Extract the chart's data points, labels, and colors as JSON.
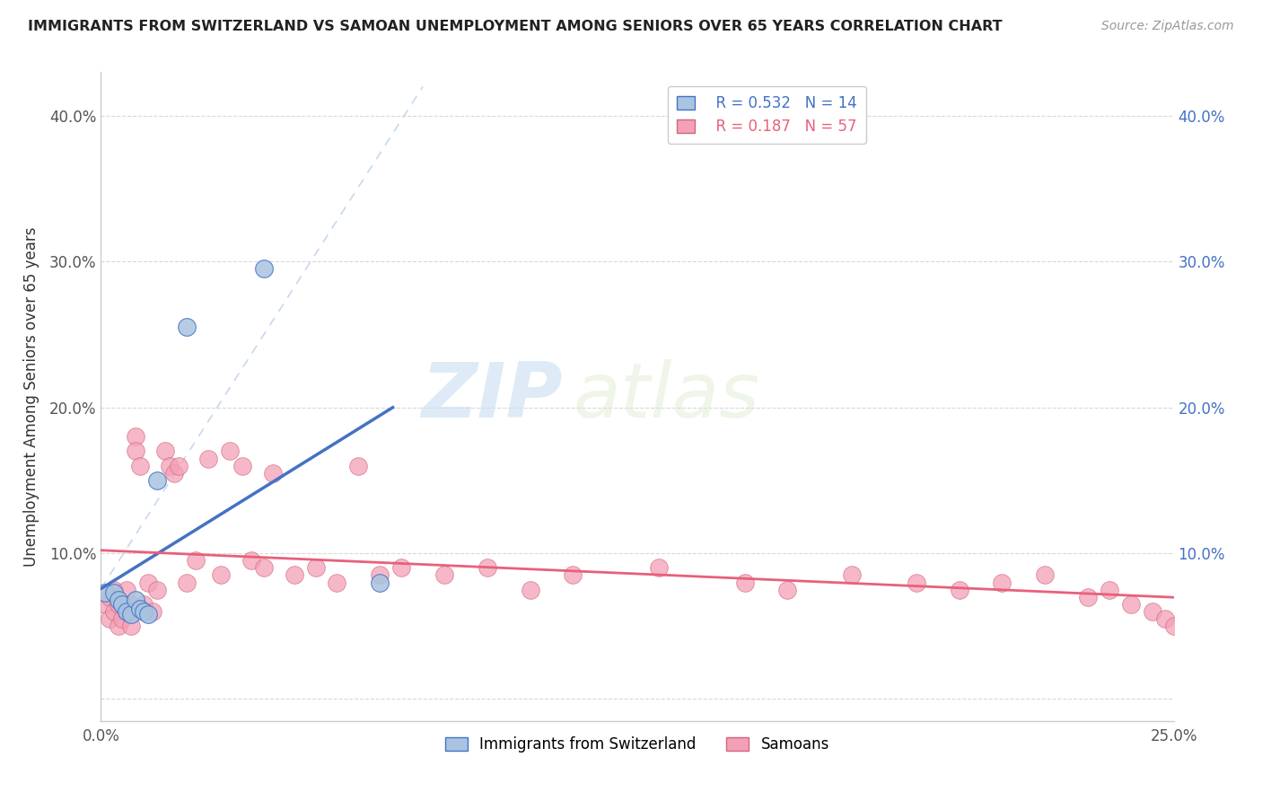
{
  "title": "IMMIGRANTS FROM SWITZERLAND VS SAMOAN UNEMPLOYMENT AMONG SENIORS OVER 65 YEARS CORRELATION CHART",
  "source": "Source: ZipAtlas.com",
  "ylabel": "Unemployment Among Seniors over 65 years",
  "xlim": [
    0.0,
    0.25
  ],
  "ylim": [
    -0.015,
    0.43
  ],
  "color_swiss": "#a8c4e0",
  "color_samoan": "#f4a0b8",
  "color_swiss_line": "#4472c4",
  "color_samoan_line": "#e8607a",
  "watermark_zip": "ZIP",
  "watermark_atlas": "atlas",
  "swiss_x": [
    0.001,
    0.003,
    0.004,
    0.005,
    0.006,
    0.007,
    0.008,
    0.009,
    0.01,
    0.011,
    0.013,
    0.02,
    0.038,
    0.065
  ],
  "swiss_y": [
    0.073,
    0.073,
    0.068,
    0.065,
    0.06,
    0.058,
    0.068,
    0.062,
    0.06,
    0.058,
    0.15,
    0.255,
    0.295,
    0.08
  ],
  "samoan_x": [
    0.001,
    0.002,
    0.002,
    0.003,
    0.003,
    0.004,
    0.004,
    0.005,
    0.005,
    0.006,
    0.006,
    0.007,
    0.007,
    0.008,
    0.008,
    0.009,
    0.01,
    0.011,
    0.012,
    0.013,
    0.015,
    0.016,
    0.017,
    0.018,
    0.02,
    0.022,
    0.025,
    0.028,
    0.03,
    0.033,
    0.035,
    0.038,
    0.04,
    0.045,
    0.05,
    0.055,
    0.06,
    0.065,
    0.07,
    0.08,
    0.09,
    0.1,
    0.11,
    0.13,
    0.15,
    0.16,
    0.175,
    0.19,
    0.2,
    0.21,
    0.22,
    0.23,
    0.235,
    0.24,
    0.245,
    0.248,
    0.25
  ],
  "samoan_y": [
    0.065,
    0.07,
    0.055,
    0.06,
    0.075,
    0.065,
    0.05,
    0.065,
    0.055,
    0.06,
    0.075,
    0.065,
    0.05,
    0.18,
    0.17,
    0.16,
    0.065,
    0.08,
    0.06,
    0.075,
    0.17,
    0.16,
    0.155,
    0.16,
    0.08,
    0.095,
    0.165,
    0.085,
    0.17,
    0.16,
    0.095,
    0.09,
    0.155,
    0.085,
    0.09,
    0.08,
    0.16,
    0.085,
    0.09,
    0.085,
    0.09,
    0.075,
    0.085,
    0.09,
    0.08,
    0.075,
    0.085,
    0.08,
    0.075,
    0.08,
    0.085,
    0.07,
    0.075,
    0.065,
    0.06,
    0.055,
    0.05
  ]
}
